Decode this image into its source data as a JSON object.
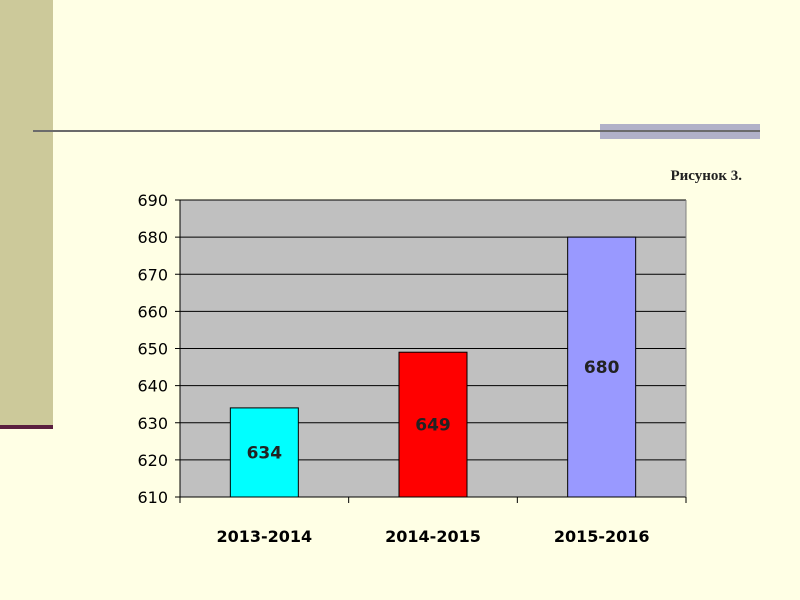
{
  "caption": "Рисунок 3.",
  "colors": {
    "background": "#FFFFE5",
    "plot_area": "#C0C0C0",
    "gridline": "#000000",
    "sidebar": "#CCC99A",
    "bar_colors": [
      "#00FFFF",
      "#FF0000",
      "#9999FF"
    ]
  },
  "chart_data": {
    "type": "bar",
    "categories": [
      "2013-2014",
      "2014-2015",
      "2015-2016"
    ],
    "values": [
      634,
      649,
      680
    ],
    "data_labels": [
      "634",
      "649",
      "680"
    ],
    "title": "",
    "xlabel": "",
    "ylabel": "",
    "ylim": [
      610,
      690
    ],
    "yticks": [
      "610",
      "620",
      "630",
      "640",
      "650",
      "660",
      "670",
      "680",
      "690"
    ],
    "grid": true,
    "legend": "none"
  }
}
